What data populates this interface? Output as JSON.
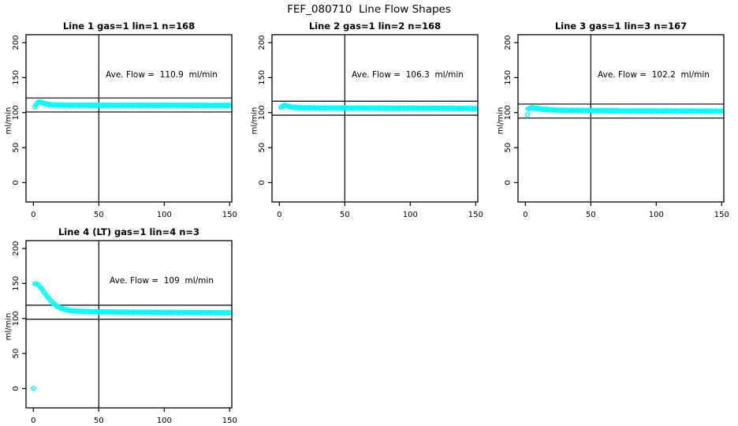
{
  "header": {
    "title": "FEF_080710  Line Flow Shapes"
  },
  "chart_data": [
    {
      "type": "scatter",
      "title": "Line 1 gas=1 lin=1 n=168",
      "annotation": "Ave. Flow =  110.9  ml/min",
      "ave_flow_ml_min": 110.9,
      "n": 168,
      "ylabel": "ml/min",
      "xticks": [
        0,
        50,
        100,
        150
      ],
      "yticks": [
        0,
        50,
        100,
        150,
        200
      ],
      "xlim": [
        0,
        150
      ],
      "ylim": [
        0,
        200
      ],
      "ref_hlines": [
        120.9,
        100.9
      ],
      "ref_vline": 50,
      "marker_color": "#00FFFF",
      "marker": "open-circle",
      "x_start": 1,
      "x_end": 150,
      "n_markers": 168,
      "noise": 0.6,
      "curve": [
        [
          1,
          107.5
        ],
        [
          2,
          112
        ],
        [
          3,
          114
        ],
        [
          4,
          115
        ],
        [
          5,
          115.2
        ],
        [
          6,
          114.8
        ],
        [
          7,
          114
        ],
        [
          8,
          113.2
        ],
        [
          10,
          112.2
        ],
        [
          12,
          111.5
        ],
        [
          15,
          111
        ],
        [
          20,
          110.7
        ],
        [
          30,
          110.5
        ],
        [
          50,
          110.4
        ],
        [
          100,
          110.4
        ],
        [
          150,
          110.3
        ]
      ],
      "extra_points": []
    },
    {
      "type": "scatter",
      "title": "Line 2 gas=1 lin=2 n=168",
      "annotation": "Ave. Flow =  106.3  ml/min",
      "ave_flow_ml_min": 106.3,
      "n": 168,
      "ylabel": "ml/min",
      "xticks": [
        0,
        50,
        100,
        150
      ],
      "yticks": [
        0,
        50,
        100,
        150,
        200
      ],
      "xlim": [
        0,
        150
      ],
      "ylim": [
        0,
        200
      ],
      "ref_hlines": [
        116.3,
        96.3
      ],
      "ref_vline": 50,
      "marker_color": "#00FFFF",
      "marker": "open-circle",
      "x_start": 1,
      "x_end": 150,
      "n_markers": 168,
      "noise": 0.6,
      "curve": [
        [
          1,
          107
        ],
        [
          2,
          109
        ],
        [
          3,
          110
        ],
        [
          4,
          110.2
        ],
        [
          5,
          109.8
        ],
        [
          6,
          109.2
        ],
        [
          8,
          108.4
        ],
        [
          10,
          107.8
        ],
        [
          12,
          107.4
        ],
        [
          15,
          107
        ],
        [
          20,
          106.8
        ],
        [
          30,
          106.6
        ],
        [
          50,
          106.5
        ],
        [
          100,
          106.3
        ],
        [
          130,
          106.1
        ],
        [
          150,
          105.7
        ]
      ],
      "extra_points": []
    },
    {
      "type": "scatter",
      "title": "Line 3 gas=1 lin=3 n=167",
      "annotation": "Ave. Flow =  102.2  ml/min",
      "ave_flow_ml_min": 102.2,
      "n": 167,
      "ylabel": "ml/min",
      "xticks": [
        0,
        50,
        100,
        150
      ],
      "yticks": [
        0,
        50,
        100,
        150,
        200
      ],
      "xlim": [
        0,
        150
      ],
      "ylim": [
        0,
        200
      ],
      "ref_hlines": [
        112.2,
        92.2
      ],
      "ref_vline": 50,
      "marker_color": "#00FFFF",
      "marker": "open-circle",
      "x_start": 2,
      "x_end": 150,
      "n_markers": 166,
      "noise": 0.6,
      "curve": [
        [
          2,
          104.5
        ],
        [
          3,
          106
        ],
        [
          4,
          106.8
        ],
        [
          5,
          107
        ],
        [
          6,
          106.8
        ],
        [
          8,
          106.2
        ],
        [
          10,
          105.6
        ],
        [
          12,
          105.1
        ],
        [
          15,
          104.5
        ],
        [
          20,
          103.9
        ],
        [
          30,
          103.2
        ],
        [
          50,
          102.8
        ],
        [
          80,
          102.4
        ],
        [
          120,
          102.2
        ],
        [
          150,
          102
        ]
      ],
      "extra_points": [
        [
          1.5,
          97
        ]
      ]
    },
    {
      "type": "scatter",
      "title": "Line 4 (LT) gas=1 lin=4 n=3",
      "annotation": "Ave. Flow =  109  ml/min",
      "ave_flow_ml_min": 109,
      "n": 3,
      "ylabel": "ml/min",
      "xticks": [
        0,
        50,
        100,
        150
      ],
      "yticks": [
        0,
        50,
        100,
        150,
        200
      ],
      "xlim": [
        0,
        150
      ],
      "ylim": [
        0,
        200
      ],
      "ref_hlines": [
        119,
        99
      ],
      "ref_vline": 50,
      "marker_color": "#00FFFF",
      "marker": "open-circle",
      "x_start": 1,
      "x_end": 150,
      "n_markers": 150,
      "noise": 0.5,
      "curve": [
        [
          1,
          149
        ],
        [
          2,
          150
        ],
        [
          3,
          149
        ],
        [
          4,
          147.5
        ],
        [
          5,
          145.5
        ],
        [
          6,
          143
        ],
        [
          7,
          140.5
        ],
        [
          8,
          138
        ],
        [
          9,
          135.5
        ],
        [
          10,
          133
        ],
        [
          11,
          130.5
        ],
        [
          12,
          128
        ],
        [
          13,
          126
        ],
        [
          14,
          124
        ],
        [
          15,
          122
        ],
        [
          16,
          120.5
        ],
        [
          17,
          119
        ],
        [
          18,
          117.8
        ],
        [
          19,
          116.7
        ],
        [
          20,
          115.7
        ],
        [
          22,
          114
        ],
        [
          24,
          112.8
        ],
        [
          26,
          112
        ],
        [
          28,
          111.4
        ],
        [
          30,
          111
        ],
        [
          35,
          110.3
        ],
        [
          40,
          110
        ],
        [
          50,
          109.6
        ],
        [
          60,
          109.3
        ],
        [
          70,
          109.1
        ],
        [
          80,
          109
        ],
        [
          100,
          108.7
        ],
        [
          120,
          108.5
        ],
        [
          150,
          108.2
        ]
      ],
      "extra_points": [
        [
          0,
          0
        ]
      ]
    }
  ]
}
